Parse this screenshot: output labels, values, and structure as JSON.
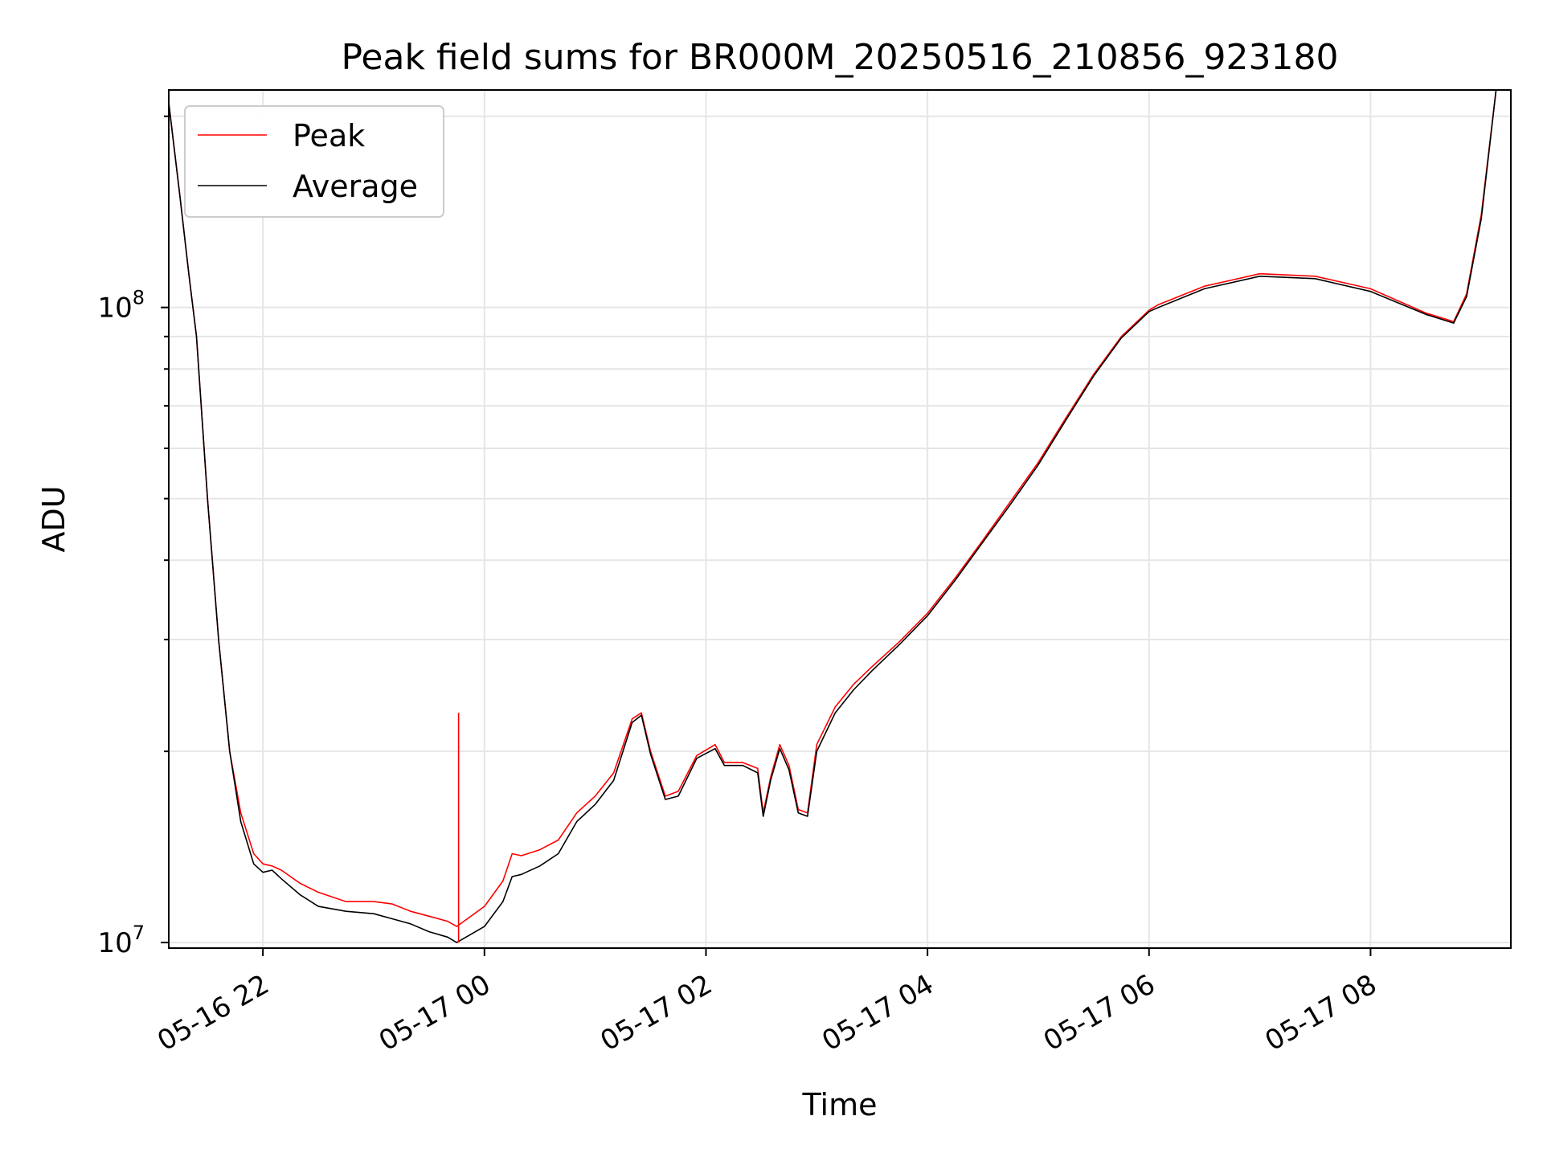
{
  "chart_data": {
    "type": "line",
    "title": "Peak field sums for BR000M_20250516_210856_923180",
    "xlabel": "Time",
    "ylabel": "ADU",
    "yscale": "log",
    "xlim": [
      "2025-05-16 21:09",
      "2025-05-17 09:16"
    ],
    "ylim": [
      9800000.0,
      220000000.0
    ],
    "grid": true,
    "legend_position": "upper-left",
    "x_ticks": [
      "05-16 22",
      "05-17 00",
      "05-17 02",
      "05-17 04",
      "05-17 06",
      "05-17 08"
    ],
    "y_ticks": [
      "10^7",
      "10^8"
    ],
    "series": [
      {
        "name": "Peak",
        "color": "#ff0000",
        "points": [
          [
            "2025-05-16 21:09",
            210000000.0
          ],
          [
            "2025-05-16 21:15",
            150000000.0
          ],
          [
            "2025-05-16 21:20",
            112000000.0
          ],
          [
            "2025-05-16 21:24",
            90000000.0
          ],
          [
            "2025-05-16 21:30",
            50000000.0
          ],
          [
            "2025-05-16 21:36",
            30000000.0
          ],
          [
            "2025-05-16 21:42",
            20000000.0
          ],
          [
            "2025-05-16 21:48",
            16000000.0
          ],
          [
            "2025-05-16 21:55",
            13800000.0
          ],
          [
            "2025-05-16 22:00",
            13300000.0
          ],
          [
            "2025-05-16 22:05",
            13200000.0
          ],
          [
            "2025-05-16 22:10",
            13000000.0
          ],
          [
            "2025-05-16 22:20",
            12400000.0
          ],
          [
            "2025-05-16 22:30",
            12000000.0
          ],
          [
            "2025-05-16 22:45",
            11600000.0
          ],
          [
            "2025-05-16 23:00",
            11600000.0
          ],
          [
            "2025-05-16 23:10",
            11500000.0
          ],
          [
            "2025-05-16 23:20",
            11200000.0
          ],
          [
            "2025-05-16 23:30",
            11000000.0
          ],
          [
            "2025-05-16 23:40",
            10800000.0
          ],
          [
            "2025-05-16 23:45",
            10600000.0
          ],
          [
            "2025-05-17 00:00",
            11400000.0
          ],
          [
            "2025-05-17 00:10",
            12500000.0
          ],
          [
            "2025-05-17 00:15",
            13800000.0
          ],
          [
            "2025-05-17 00:20",
            13700000.0
          ],
          [
            "2025-05-17 00:30",
            14000000.0
          ],
          [
            "2025-05-17 00:40",
            14500000.0
          ],
          [
            "2025-05-17 00:50",
            16000000.0
          ],
          [
            "2025-05-17 01:00",
            17000000.0
          ],
          [
            "2025-05-17 01:10",
            18500000.0
          ],
          [
            "2025-05-17 01:20",
            22500000.0
          ],
          [
            "2025-05-17 01:25",
            23000000.0
          ],
          [
            "2025-05-17 01:30",
            20000000.0
          ],
          [
            "2025-05-17 01:38",
            17000000.0
          ],
          [
            "2025-05-17 01:45",
            17300000.0
          ],
          [
            "2025-05-17 01:55",
            19700000.0
          ],
          [
            "2025-05-17 02:05",
            20500000.0
          ],
          [
            "2025-05-17 02:10",
            19200000.0
          ],
          [
            "2025-05-17 02:20",
            19200000.0
          ],
          [
            "2025-05-17 02:28",
            18800000.0
          ],
          [
            "2025-05-17 02:31",
            16000000.0
          ],
          [
            "2025-05-17 02:35",
            18200000.0
          ],
          [
            "2025-05-17 02:40",
            20500000.0
          ],
          [
            "2025-05-17 02:45",
            19000000.0
          ],
          [
            "2025-05-17 02:50",
            16200000.0
          ],
          [
            "2025-05-17 02:55",
            16000000.0
          ],
          [
            "2025-05-17 03:00",
            20500000.0
          ],
          [
            "2025-05-17 03:10",
            23500000.0
          ],
          [
            "2025-05-17 03:20",
            25500000.0
          ],
          [
            "2025-05-17 03:30",
            27200000.0
          ],
          [
            "2025-05-17 03:45",
            29800000.0
          ],
          [
            "2025-05-17 04:00",
            33000000.0
          ],
          [
            "2025-05-17 04:15",
            37500000.0
          ],
          [
            "2025-05-17 04:30",
            43000000.0
          ],
          [
            "2025-05-17 04:45",
            49500000.0
          ],
          [
            "2025-05-17 05:00",
            57000000.0
          ],
          [
            "2025-05-17 05:15",
            67000000.0
          ],
          [
            "2025-05-17 05:30",
            78500000.0
          ],
          [
            "2025-05-17 05:45",
            90000000.0
          ],
          [
            "2025-05-17 06:00",
            99000000.0
          ],
          [
            "2025-05-17 06:05",
            101000000.0
          ],
          [
            "2025-05-17 06:30",
            108000000.0
          ],
          [
            "2025-05-17 07:00",
            113000000.0
          ],
          [
            "2025-05-17 07:30",
            112000000.0
          ],
          [
            "2025-05-17 08:00",
            107000000.0
          ],
          [
            "2025-05-17 08:30",
            98000000.0
          ],
          [
            "2025-05-17 08:45",
            95000000.0
          ],
          [
            "2025-05-17 08:52",
            105000000.0
          ],
          [
            "2025-05-17 09:00",
            140000000.0
          ],
          [
            "2025-05-17 09:08",
            220000000.0
          ]
        ]
      },
      {
        "name": "Average",
        "color": "#000000",
        "points": [
          [
            "2025-05-16 21:09",
            210000000.0
          ],
          [
            "2025-05-16 21:15",
            150000000.0
          ],
          [
            "2025-05-16 21:20",
            112000000.0
          ],
          [
            "2025-05-16 21:24",
            90000000.0
          ],
          [
            "2025-05-16 21:30",
            50000000.0
          ],
          [
            "2025-05-16 21:36",
            30000000.0
          ],
          [
            "2025-05-16 21:42",
            20000000.0
          ],
          [
            "2025-05-16 21:48",
            15500000.0
          ],
          [
            "2025-05-16 21:55",
            13300000.0
          ],
          [
            "2025-05-16 22:00",
            12900000.0
          ],
          [
            "2025-05-16 22:05",
            13000000.0
          ],
          [
            "2025-05-16 22:10",
            12600000.0
          ],
          [
            "2025-05-16 22:20",
            11900000.0
          ],
          [
            "2025-05-16 22:30",
            11400000.0
          ],
          [
            "2025-05-16 22:45",
            11200000.0
          ],
          [
            "2025-05-16 23:00",
            11100000.0
          ],
          [
            "2025-05-16 23:10",
            10900000.0
          ],
          [
            "2025-05-16 23:20",
            10700000.0
          ],
          [
            "2025-05-16 23:30",
            10400000.0
          ],
          [
            "2025-05-16 23:40",
            10200000.0
          ],
          [
            "2025-05-16 23:45",
            10000000.0
          ],
          [
            "2025-05-17 00:00",
            10600000.0
          ],
          [
            "2025-05-17 00:10",
            11600000.0
          ],
          [
            "2025-05-17 00:15",
            12700000.0
          ],
          [
            "2025-05-17 00:20",
            12800000.0
          ],
          [
            "2025-05-17 00:30",
            13200000.0
          ],
          [
            "2025-05-17 00:40",
            13800000.0
          ],
          [
            "2025-05-17 00:50",
            15500000.0
          ],
          [
            "2025-05-17 01:00",
            16500000.0
          ],
          [
            "2025-05-17 01:10",
            18000000.0
          ],
          [
            "2025-05-17 01:20",
            22200000.0
          ],
          [
            "2025-05-17 01:25",
            22800000.0
          ],
          [
            "2025-05-17 01:30",
            19800000.0
          ],
          [
            "2025-05-17 01:38",
            16800000.0
          ],
          [
            "2025-05-17 01:45",
            17000000.0
          ],
          [
            "2025-05-17 01:55",
            19500000.0
          ],
          [
            "2025-05-17 02:05",
            20200000.0
          ],
          [
            "2025-05-17 02:10",
            19000000.0
          ],
          [
            "2025-05-17 02:20",
            19000000.0
          ],
          [
            "2025-05-17 02:28",
            18500000.0
          ],
          [
            "2025-05-17 02:31",
            15800000.0
          ],
          [
            "2025-05-17 02:35",
            18000000.0
          ],
          [
            "2025-05-17 02:40",
            20200000.0
          ],
          [
            "2025-05-17 02:45",
            18700000.0
          ],
          [
            "2025-05-17 02:50",
            16000000.0
          ],
          [
            "2025-05-17 02:55",
            15800000.0
          ],
          [
            "2025-05-17 03:00",
            20000000.0
          ],
          [
            "2025-05-17 03:10",
            23000000.0
          ],
          [
            "2025-05-17 03:20",
            25000000.0
          ],
          [
            "2025-05-17 03:30",
            26800000.0
          ],
          [
            "2025-05-17 03:45",
            29500000.0
          ],
          [
            "2025-05-17 04:00",
            32700000.0
          ],
          [
            "2025-05-17 04:15",
            37200000.0
          ],
          [
            "2025-05-17 04:30",
            42700000.0
          ],
          [
            "2025-05-17 04:45",
            49000000.0
          ],
          [
            "2025-05-17 05:00",
            56500000.0
          ],
          [
            "2025-05-17 05:15",
            66500000.0
          ],
          [
            "2025-05-17 05:30",
            78000000.0
          ],
          [
            "2025-05-17 05:45",
            89500000.0
          ],
          [
            "2025-05-17 06:00",
            98500000.0
          ],
          [
            "2025-05-17 06:05",
            100000000.0
          ],
          [
            "2025-05-17 06:30",
            107000000.0
          ],
          [
            "2025-05-17 07:00",
            112000000.0
          ],
          [
            "2025-05-17 07:30",
            111000000.0
          ],
          [
            "2025-05-17 08:00",
            106000000.0
          ],
          [
            "2025-05-17 08:30",
            97500000.0
          ],
          [
            "2025-05-17 08:45",
            94500000.0
          ],
          [
            "2025-05-17 08:52",
            104000000.0
          ],
          [
            "2025-05-17 09:00",
            138000000.0
          ],
          [
            "2025-05-17 09:08",
            220000000.0
          ]
        ]
      }
    ],
    "annotations": [
      {
        "series": "Peak",
        "type": "spike",
        "x": "2025-05-16 23:46",
        "from": 10000000.0,
        "to": 23000000.0
      }
    ]
  }
}
